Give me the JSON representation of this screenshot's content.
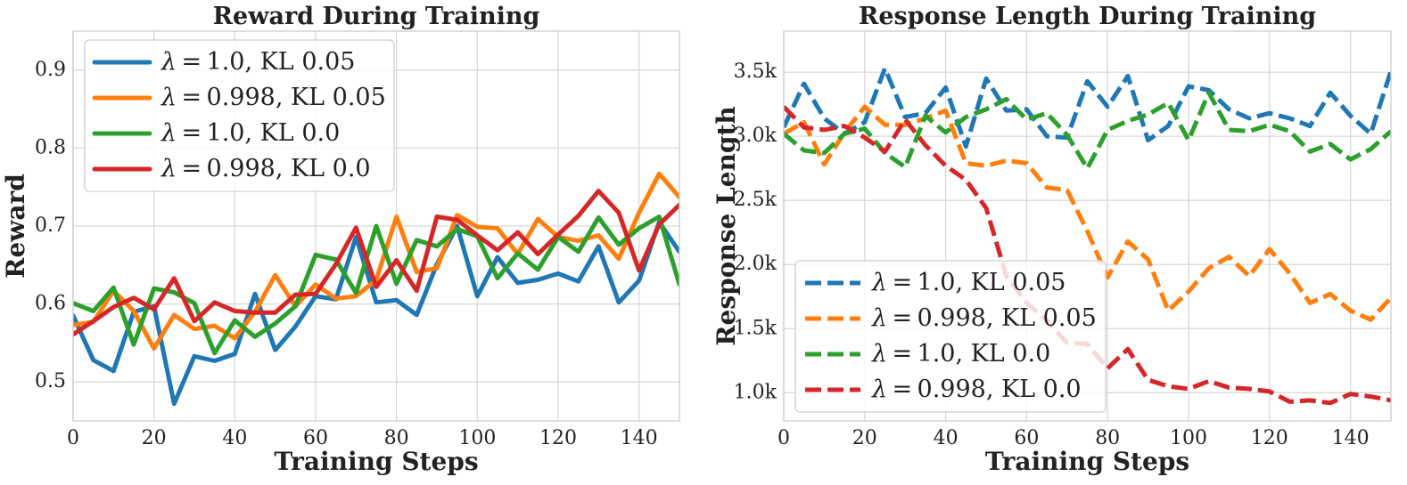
{
  "chart_data": [
    {
      "type": "line",
      "title": "Reward During Training",
      "xlabel": "Training Steps",
      "ylabel": "Reward",
      "xlim": [
        0,
        150
      ],
      "ylim": [
        0.45,
        0.95
      ],
      "xticks": [
        0,
        20,
        40,
        60,
        80,
        100,
        120,
        140
      ],
      "yticks": [
        0.5,
        0.6,
        0.7,
        0.8,
        0.9
      ],
      "ytick_labels": [
        "0.5",
        "0.6",
        "0.7",
        "0.8",
        "0.9"
      ],
      "grid": true,
      "legend_position": "top-left",
      "line_style": "solid",
      "x": [
        0,
        5,
        10,
        15,
        20,
        25,
        30,
        35,
        40,
        45,
        50,
        55,
        60,
        65,
        70,
        75,
        80,
        85,
        90,
        95,
        100,
        105,
        110,
        115,
        120,
        125,
        130,
        135,
        140,
        145,
        150
      ],
      "series": [
        {
          "name": "λ = 1.0, KL 0.05",
          "color": "#1f77b4",
          "values": [
            0.585,
            0.528,
            0.514,
            0.59,
            0.597,
            0.472,
            0.533,
            0.527,
            0.536,
            0.613,
            0.541,
            0.571,
            0.61,
            0.606,
            0.686,
            0.602,
            0.605,
            0.586,
            0.651,
            0.7,
            0.61,
            0.66,
            0.627,
            0.631,
            0.639,
            0.629,
            0.674,
            0.602,
            0.63,
            0.705,
            0.667
          ]
        },
        {
          "name": "λ = 0.998, KL 0.05",
          "color": "#ff7f0e",
          "values": [
            0.573,
            0.577,
            0.617,
            0.591,
            0.543,
            0.586,
            0.568,
            0.572,
            0.556,
            0.59,
            0.637,
            0.597,
            0.625,
            0.607,
            0.61,
            0.631,
            0.712,
            0.641,
            0.646,
            0.714,
            0.699,
            0.697,
            0.664,
            0.709,
            0.686,
            0.681,
            0.688,
            0.658,
            0.717,
            0.767,
            0.737
          ]
        },
        {
          "name": "λ = 1.0, KL 0.0",
          "color": "#2ca02c",
          "values": [
            0.601,
            0.591,
            0.621,
            0.548,
            0.62,
            0.615,
            0.601,
            0.537,
            0.579,
            0.558,
            0.575,
            0.597,
            0.663,
            0.657,
            0.614,
            0.7,
            0.626,
            0.682,
            0.674,
            0.696,
            0.687,
            0.633,
            0.665,
            0.644,
            0.686,
            0.667,
            0.711,
            0.676,
            0.697,
            0.712,
            0.625
          ]
        },
        {
          "name": "λ = 0.998, KL 0.0",
          "color": "#d62728",
          "values": [
            0.561,
            0.578,
            0.596,
            0.608,
            0.593,
            0.633,
            0.578,
            0.602,
            0.591,
            0.589,
            0.589,
            0.612,
            0.613,
            0.651,
            0.698,
            0.622,
            0.656,
            0.617,
            0.712,
            0.708,
            0.688,
            0.669,
            0.692,
            0.664,
            0.689,
            0.713,
            0.745,
            0.717,
            0.643,
            0.702,
            0.727
          ]
        }
      ]
    },
    {
      "type": "line",
      "title": "Response Length During Training",
      "xlabel": "Training Steps",
      "ylabel": "Response Length",
      "xlim": [
        0,
        150
      ],
      "ylim": [
        780,
        3820
      ],
      "xticks": [
        0,
        20,
        40,
        60,
        80,
        100,
        120,
        140
      ],
      "yticks": [
        1000,
        1500,
        2000,
        2500,
        3000,
        3500
      ],
      "ytick_labels": [
        "1.0k",
        "1.5k",
        "2.0k",
        "2.5k",
        "3.0k",
        "3.5k"
      ],
      "grid": true,
      "legend_position": "bottom-left",
      "line_style": "dashed",
      "x": [
        0,
        5,
        10,
        15,
        20,
        25,
        30,
        35,
        40,
        45,
        50,
        55,
        60,
        65,
        70,
        75,
        80,
        85,
        90,
        95,
        100,
        105,
        110,
        115,
        120,
        125,
        130,
        135,
        140,
        145,
        150
      ],
      "series": [
        {
          "name": "λ = 1.0, KL 0.05",
          "color": "#1f77b4",
          "values": [
            3070,
            3410,
            3140,
            3020,
            3110,
            3530,
            3150,
            3180,
            3380,
            2920,
            3450,
            3200,
            3210,
            3000,
            2990,
            3430,
            3230,
            3470,
            2970,
            3080,
            3390,
            3360,
            3210,
            3140,
            3180,
            3140,
            3080,
            3340,
            3160,
            3020,
            3510
          ]
        },
        {
          "name": "λ = 0.998, KL 0.05",
          "color": "#ff7f0e",
          "values": [
            3020,
            3110,
            2780,
            3030,
            3230,
            3090,
            3090,
            3140,
            3200,
            2790,
            2770,
            2810,
            2790,
            2600,
            2580,
            2260,
            1900,
            2180,
            2040,
            1640,
            1790,
            1970,
            2060,
            1910,
            2120,
            1930,
            1700,
            1770,
            1640,
            1570,
            1740
          ]
        },
        {
          "name": "λ = 1.0, KL 0.0",
          "color": "#2ca02c",
          "values": [
            3020,
            2890,
            2870,
            3020,
            3060,
            2870,
            2760,
            3160,
            3030,
            3150,
            3210,
            3290,
            3130,
            3180,
            3010,
            2750,
            3050,
            3120,
            3170,
            3260,
            2970,
            3340,
            3050,
            3040,
            3090,
            3040,
            2880,
            2940,
            2820,
            2900,
            3040
          ]
        },
        {
          "name": "λ = 0.998, KL 0.0",
          "color": "#d62728",
          "values": [
            3230,
            3070,
            3050,
            3080,
            2990,
            2880,
            3130,
            2930,
            2770,
            2660,
            2440,
            1910,
            1700,
            1560,
            1390,
            1380,
            1190,
            1340,
            1100,
            1050,
            1030,
            1090,
            1040,
            1030,
            1010,
            930,
            940,
            920,
            990,
            970,
            940
          ]
        }
      ]
    }
  ]
}
